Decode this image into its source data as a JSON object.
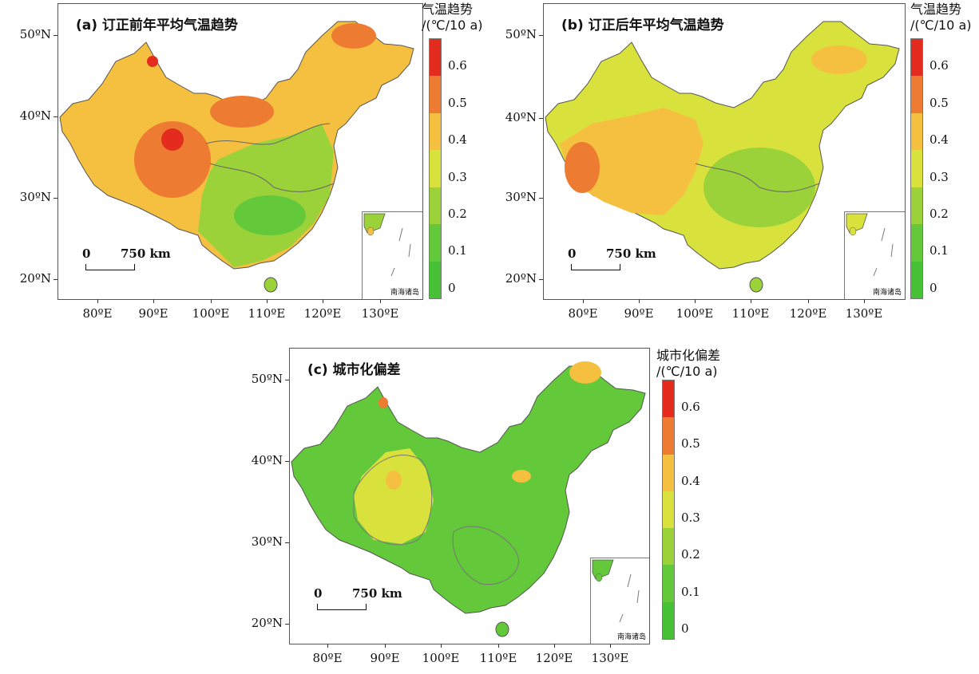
{
  "panels": [
    {
      "title": "(a) 订正前年平均气温趋势",
      "legend_title_1": "气温趋势",
      "legend_title_2": "/(℃/10 a)",
      "scale_zero": "0",
      "scale_len": "750 km",
      "inset_label": "南海诸岛"
    },
    {
      "title": "(b) 订正后年平均气温趋势",
      "legend_title_1": "气温趋势",
      "legend_title_2": "/(℃/10 a)",
      "scale_zero": "0",
      "scale_len": "750 km",
      "inset_label": "南海诸岛"
    },
    {
      "title": "(c) 城市化偏差",
      "legend_title_1": "城市化偏差",
      "legend_title_2": "/(℃/10 a)",
      "scale_zero": "0",
      "scale_len": "750 km",
      "inset_label": "南海诸岛"
    }
  ],
  "lat_labels": [
    "50ºN",
    "40ºN",
    "30ºN",
    "20ºN"
  ],
  "lon_labels": [
    "80ºE",
    "90ºE",
    "100ºE",
    "110ºE",
    "120ºE",
    "130ºE"
  ],
  "legend_labels": [
    "0.6",
    "0.5",
    "0.4",
    "0.3",
    "0.2",
    "0.1",
    "0"
  ],
  "legend_colors": [
    "#e32b1e",
    "#ee7b32",
    "#f5c040",
    "#d9e23c",
    "#9bd23a",
    "#63c83a",
    "#47c237"
  ]
}
